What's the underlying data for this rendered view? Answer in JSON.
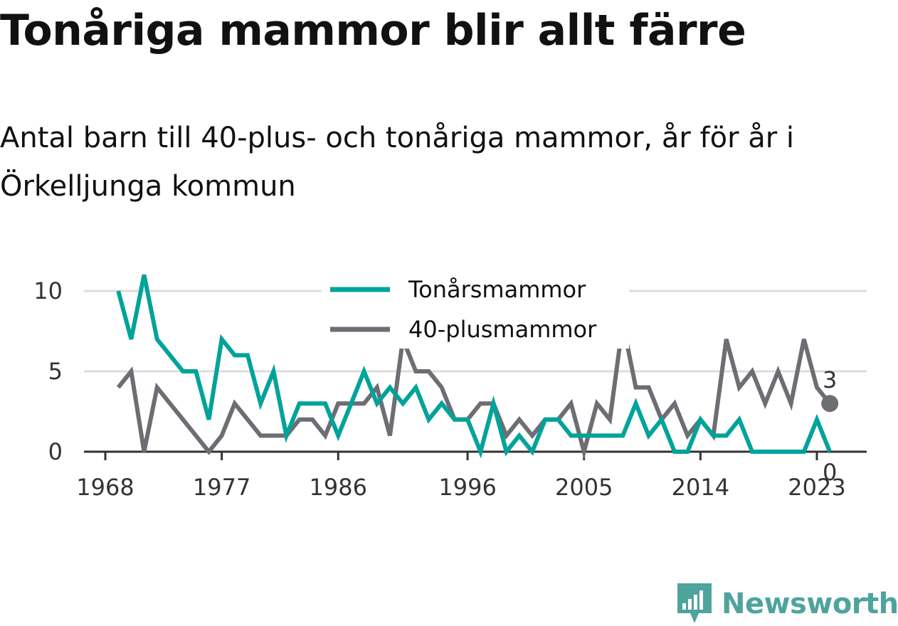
{
  "chart_data": {
    "type": "line",
    "title": "Tonåriga mammor blir allt färre",
    "subtitle_lines": [
      "Antal barn till 40-plus- och tonåriga mammor, år för år i",
      "Örkelljunga kommun"
    ],
    "x": [
      1969,
      1970,
      1971,
      1972,
      1973,
      1974,
      1975,
      1976,
      1977,
      1978,
      1979,
      1980,
      1981,
      1982,
      1983,
      1984,
      1985,
      1986,
      1987,
      1988,
      1989,
      1990,
      1991,
      1992,
      1993,
      1994,
      1995,
      1996,
      1997,
      1998,
      1999,
      2000,
      2001,
      2002,
      2003,
      2004,
      2005,
      2006,
      2007,
      2008,
      2009,
      2010,
      2011,
      2012,
      2013,
      2014,
      2015,
      2016,
      2017,
      2018,
      2019,
      2020,
      2021,
      2022,
      2023
    ],
    "series": [
      {
        "name": "Tonårsmammor",
        "color": "#00a39a",
        "values": [
          10,
          7,
          11,
          7,
          6,
          5,
          5,
          2,
          7,
          6,
          6,
          3,
          5,
          1,
          3,
          3,
          3,
          1,
          3,
          5,
          3,
          4,
          3,
          4,
          2,
          3,
          2,
          2,
          0,
          3,
          0,
          1,
          0,
          2,
          2,
          1,
          1,
          1,
          1,
          1,
          3,
          1,
          2,
          0,
          0,
          2,
          1,
          1,
          2,
          0,
          0,
          0,
          0,
          0,
          2
        ]
      },
      {
        "name": "40-plusmammor",
        "color": "#6e6d73",
        "values": [
          4,
          5,
          0,
          4,
          3,
          2,
          1,
          0,
          1,
          3,
          2,
          1,
          1,
          1,
          2,
          2,
          1,
          3,
          3,
          3,
          4,
          1,
          7,
          5,
          5,
          4,
          2,
          2,
          3,
          3,
          1,
          2,
          1,
          2,
          2,
          3,
          0,
          3,
          2,
          8,
          4,
          4,
          2,
          3,
          1,
          2,
          1,
          7,
          4,
          5,
          3,
          5,
          3,
          7,
          4
        ]
      }
    ],
    "last_points": [
      {
        "series": "40-plusmammor",
        "x": 2024,
        "value": 3,
        "label": "3"
      },
      {
        "series": "Tonårsmammor",
        "x": 2024,
        "value": 0,
        "label": "0"
      }
    ],
    "x_ticks": [
      1968,
      1977,
      1986,
      1996,
      2005,
      2014,
      2023
    ],
    "x_tick_labels": [
      "1968",
      "1977",
      "1986",
      "1996",
      "2005",
      "2014",
      "2023"
    ],
    "y_ticks": [
      0,
      5,
      10
    ],
    "y_tick_labels": [
      "0",
      "5",
      "10"
    ],
    "xlim": [
      1968.2,
      2027.5
    ],
    "ylim": [
      0,
      11
    ],
    "grid": "horizontal",
    "legend_placement": "top-center",
    "axis_color": "#333333",
    "grid_color": "#dddddd"
  },
  "logo": {
    "text": "Newsworthy",
    "color": "#4fa39d",
    "icon": "newsworthy-bar-chart-badge-icon"
  }
}
